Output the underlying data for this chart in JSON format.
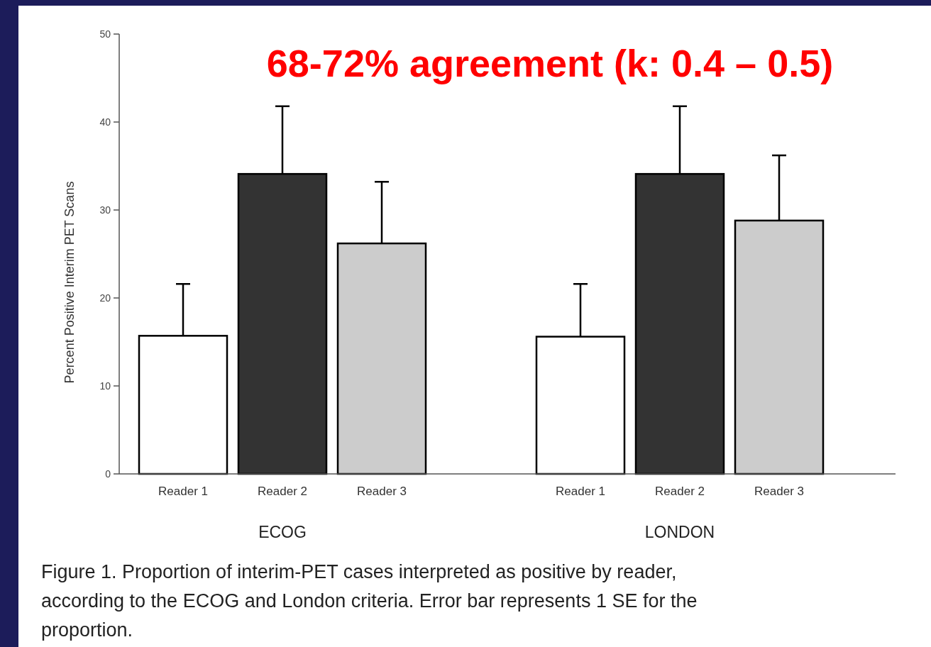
{
  "chart_data": {
    "type": "bar",
    "title": "68-72% agreement (k: 0.4 – 0.5)",
    "ylabel": "Percent Positive Interim PET Scans",
    "categories": [
      "Reader 1",
      "Reader 2",
      "Reader 3",
      "Reader 1",
      "Reader 2",
      "Reader 3"
    ],
    "values": [
      15.7,
      34.1,
      26.2,
      15.6,
      34.1,
      28.8
    ],
    "colors": [
      "#ffffff",
      "#333333",
      "#cccccc",
      "#ffffff",
      "#333333",
      "#cccccc"
    ],
    "errors": [
      [
        15.7,
        21.6
      ],
      [
        34.1,
        41.8
      ],
      [
        26.2,
        33.2
      ],
      [
        15.6,
        21.6
      ],
      [
        34.1,
        41.8
      ],
      [
        28.8,
        36.2
      ]
    ],
    "ylim": [
      0,
      50
    ],
    "yticks": [
      0,
      10,
      20,
      30,
      40,
      50
    ],
    "annotations": [
      "ECOG",
      "LONDON",
      "Figure 1. Proportion of interim-PET cases interpreted as positive by reader, according to the ECOG and London criteria. Error bar represents 1 SE for the proportion."
    ]
  }
}
